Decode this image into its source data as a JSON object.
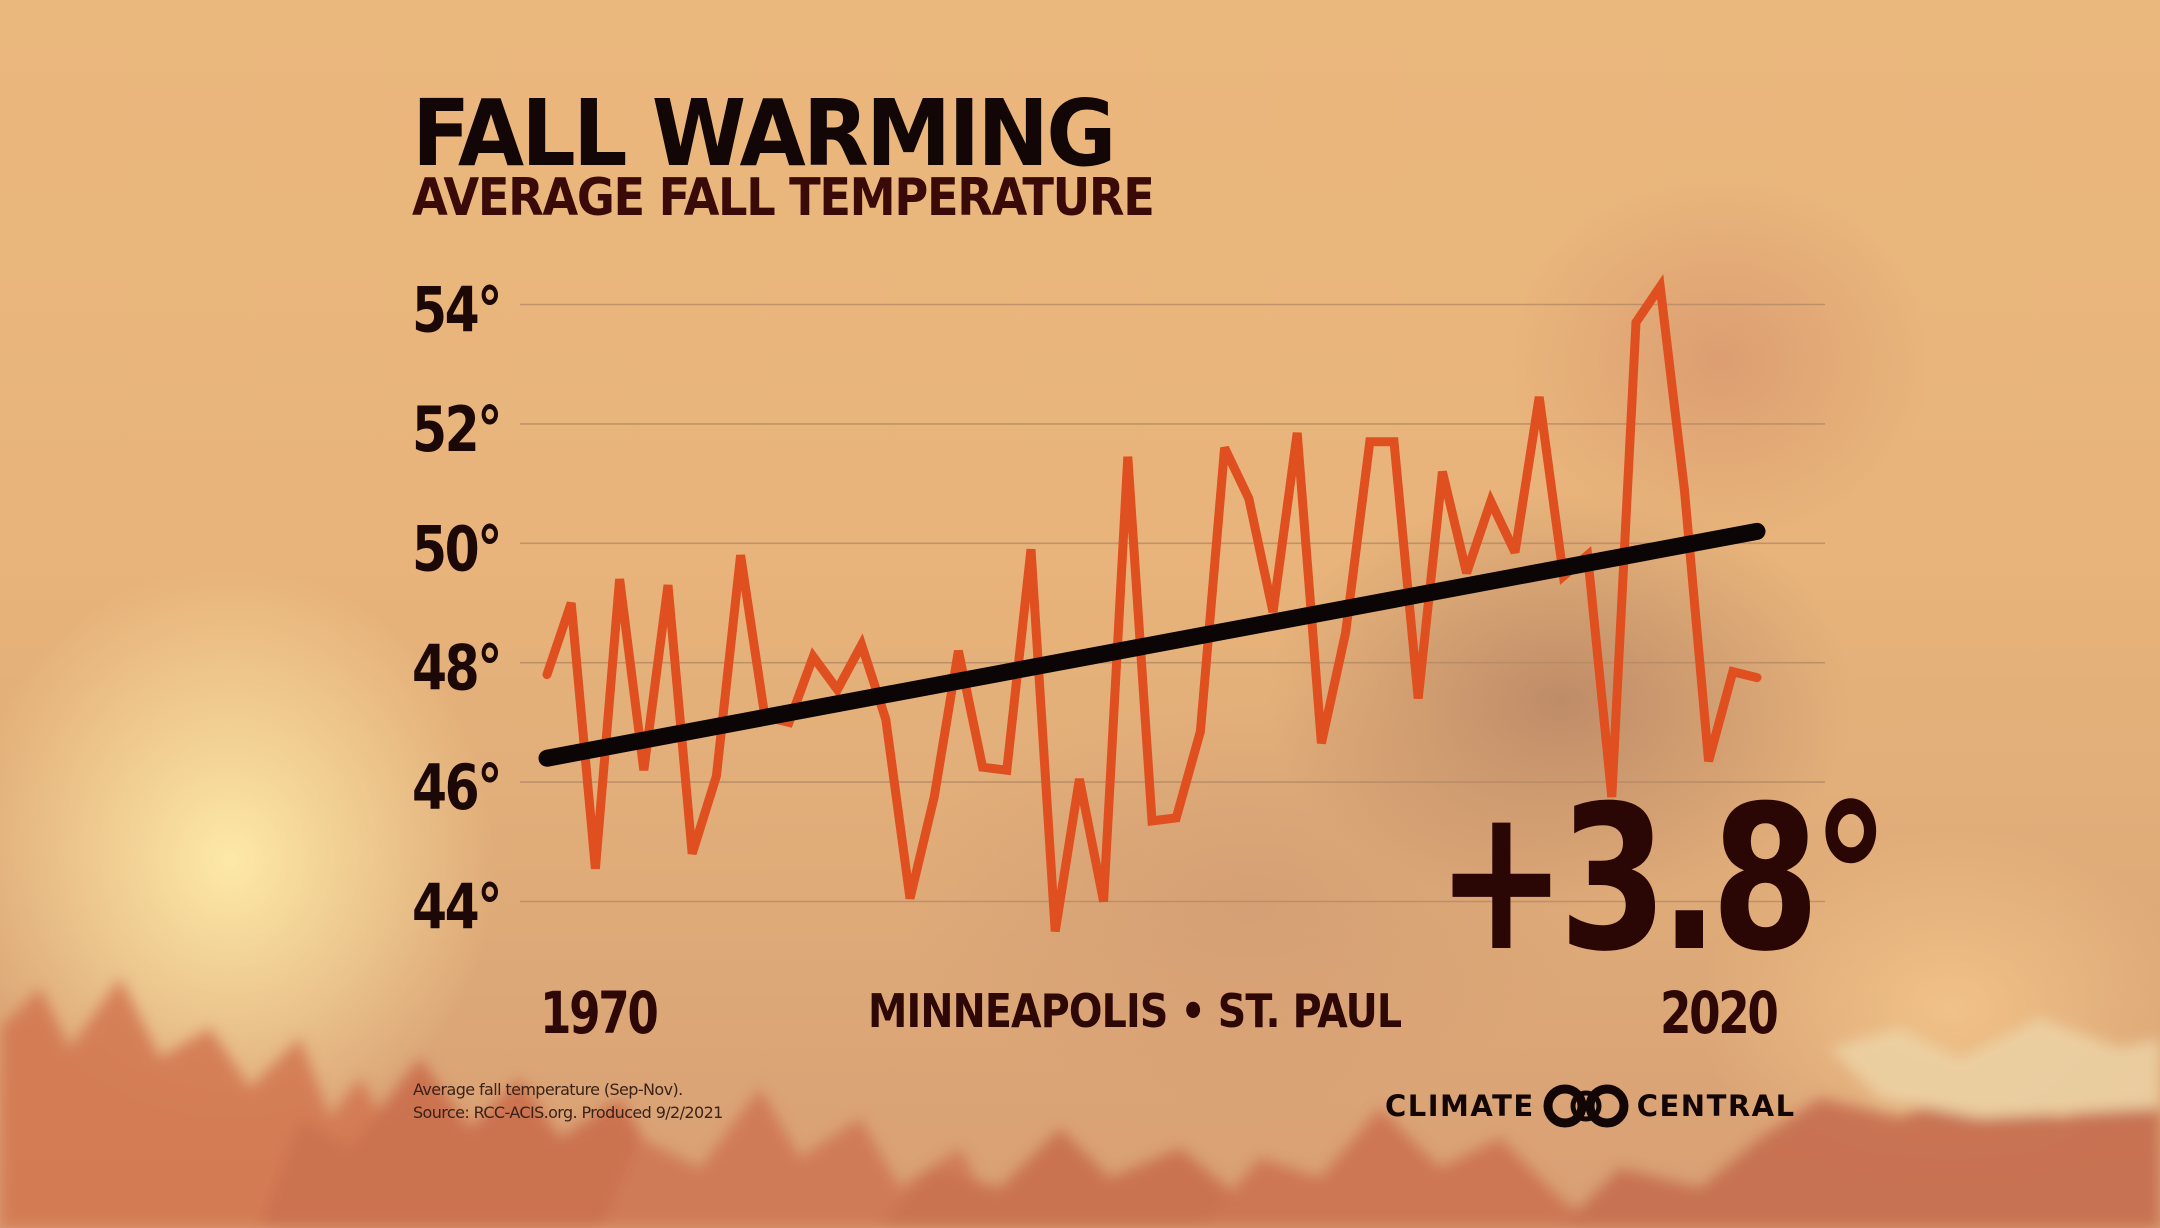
{
  "title": "FALL WARMING",
  "subtitle": "AVERAGE FALL TEMPERATURE",
  "location": "MINNEAPOLIS • ST. PAUL",
  "change_label": "+3.8°",
  "footnote": {
    "line1": "Average fall temperature (Sep-Nov).",
    "line2": "Source: RCC-ACIS.org. Produced 9/2/2021"
  },
  "brand": {
    "left_word": "CLIMATE",
    "right_word": "CENTRAL",
    "icon": "interlocking-circles-logo-icon"
  },
  "colors": {
    "series_line": "#e04f1f",
    "trend_line": "#0b0505",
    "text_dark": "#2a0605",
    "gridline": "#b58a66"
  },
  "chart_data": {
    "type": "line",
    "title": "FALL WARMING",
    "subtitle": "AVERAGE FALL TEMPERATURE",
    "xlabel": "",
    "ylabel": "",
    "x_tick_labels": [
      "1970",
      "2020"
    ],
    "y_ticks": [
      44,
      46,
      48,
      50,
      52,
      54
    ],
    "y_tick_labels": [
      "44°",
      "46°",
      "48°",
      "50°",
      "52°",
      "54°"
    ],
    "xlim": [
      1970,
      2020
    ],
    "ylim": [
      43.4,
      54.4
    ],
    "grid": "horizontal",
    "legend": "none",
    "annotation": "+3.8°",
    "series": [
      {
        "name": "Average fall temperature (°F)",
        "x": [
          1970,
          1971,
          1972,
          1973,
          1974,
          1975,
          1976,
          1977,
          1978,
          1979,
          1980,
          1981,
          1982,
          1983,
          1984,
          1985,
          1986,
          1987,
          1988,
          1989,
          1990,
          1991,
          1992,
          1993,
          1994,
          1995,
          1996,
          1997,
          1998,
          1999,
          2000,
          2001,
          2002,
          2003,
          2004,
          2005,
          2006,
          2007,
          2008,
          2009,
          2010,
          2011,
          2012,
          2013,
          2014,
          2015,
          2016,
          2017,
          2018,
          2019,
          2020
        ],
        "values": [
          47.8,
          49.0,
          44.55,
          49.4,
          46.2,
          49.3,
          44.8,
          46.1,
          49.8,
          47.1,
          47.0,
          48.1,
          47.55,
          48.3,
          47.05,
          44.05,
          45.75,
          48.2,
          46.25,
          46.2,
          49.9,
          43.5,
          46.05,
          44.0,
          51.45,
          45.35,
          45.4,
          46.85,
          51.6,
          50.75,
          48.85,
          51.85,
          46.65,
          48.5,
          51.7,
          51.7,
          47.4,
          51.2,
          49.5,
          50.7,
          49.85,
          52.45,
          49.45,
          49.8,
          45.75,
          53.7,
          54.3,
          50.9,
          46.35,
          47.85,
          47.75
        ]
      },
      {
        "name": "Linear trend",
        "x": [
          1970,
          2020
        ],
        "values": [
          46.4,
          50.2
        ]
      }
    ]
  }
}
